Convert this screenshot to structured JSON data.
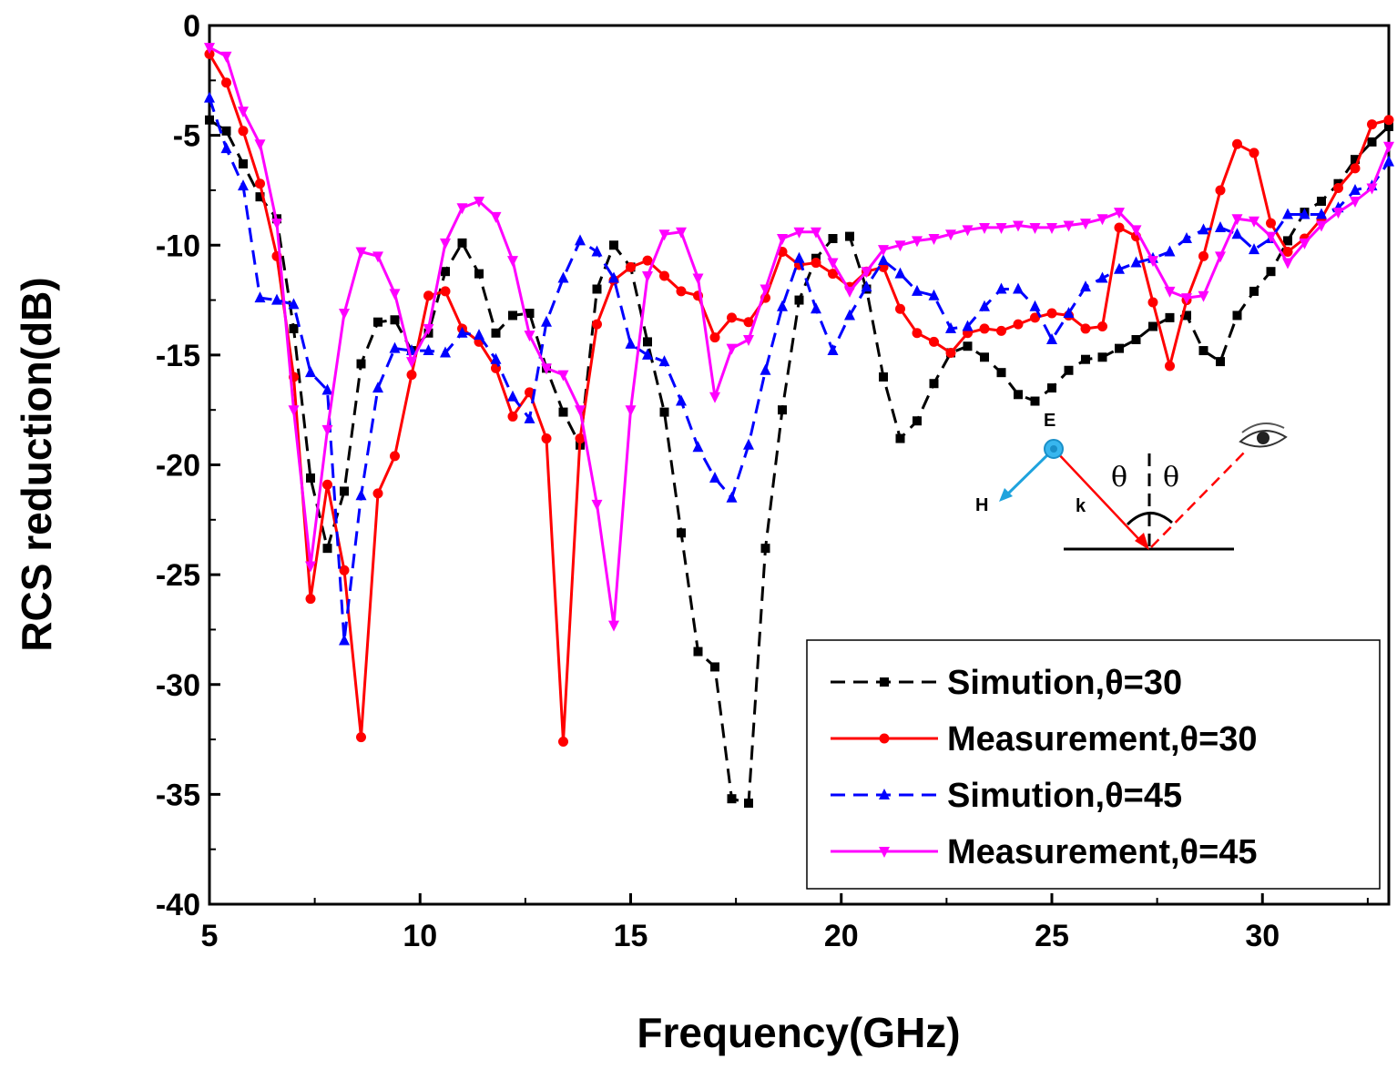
{
  "chart_data": {
    "type": "line",
    "title": "",
    "xlabel": "Frequency(GHz)",
    "ylabel": "RCS reduction(dB)",
    "xlim": [
      5,
      33
    ],
    "ylim": [
      -40,
      0
    ],
    "xticks": [
      5,
      10,
      15,
      20,
      25,
      30
    ],
    "yticks": [
      0,
      -5,
      -10,
      -15,
      -20,
      -25,
      -30,
      -35,
      -40
    ],
    "grid": false,
    "legend_position": "bottom-right",
    "series": [
      {
        "name": "Simution,θ=30",
        "color": "#000000",
        "dash": "dashed",
        "marker": "square",
        "x": [
          5,
          5.4,
          5.8,
          6.2,
          6.6,
          7,
          7.4,
          7.8,
          8.2,
          8.6,
          9,
          9.4,
          9.8,
          10.2,
          10.6,
          11,
          11.4,
          11.8,
          12.2,
          12.6,
          13,
          13.4,
          13.8,
          14.2,
          14.6,
          15,
          15.4,
          15.8,
          16.2,
          16.6,
          17,
          17.4,
          17.8,
          18.2,
          18.6,
          19,
          19.4,
          19.8,
          20.2,
          20.6,
          21,
          21.4,
          21.8,
          22.2,
          22.6,
          23,
          23.4,
          23.8,
          24.2,
          24.6,
          25,
          25.4,
          25.8,
          26.2,
          26.6,
          27,
          27.4,
          27.8,
          28.2,
          28.6,
          29,
          29.4,
          29.8,
          30.2,
          30.6,
          31,
          31.4,
          31.8,
          32.2,
          32.6,
          33
        ],
        "values": [
          -4.3,
          -4.8,
          -6.3,
          -7.8,
          -8.8,
          -13.8,
          -20.6,
          -23.8,
          -21.2,
          -15.4,
          -13.5,
          -13.4,
          -14.8,
          -14.0,
          -11.2,
          -9.9,
          -11.3,
          -14.0,
          -13.2,
          -13.1,
          -15.6,
          -17.6,
          -19.1,
          -12.0,
          -10.0,
          -11.0,
          -14.4,
          -17.6,
          -23.1,
          -28.5,
          -29.2,
          -35.2,
          -35.4,
          -23.8,
          -17.5,
          -12.5,
          -10.6,
          -9.7,
          -9.6,
          -12.0,
          -16.0,
          -18.8,
          -18.0,
          -16.3,
          -14.9,
          -14.6,
          -15.1,
          -15.8,
          -16.8,
          -17.1,
          -16.5,
          -15.7,
          -15.2,
          -15.1,
          -14.7,
          -14.3,
          -13.7,
          -13.3,
          -13.2,
          -14.8,
          -15.3,
          -13.2,
          -12.1,
          -11.2,
          -9.8,
          -8.5,
          -8.0,
          -7.2,
          -6.1,
          -5.3,
          -4.6
        ]
      },
      {
        "name": "Measurement,θ=30",
        "color": "#ff0000",
        "dash": "solid",
        "marker": "circle",
        "x": [
          5,
          5.4,
          5.8,
          6.2,
          6.6,
          7,
          7.4,
          7.8,
          8.2,
          8.6,
          9,
          9.4,
          9.8,
          10.2,
          10.6,
          11,
          11.4,
          11.8,
          12.2,
          12.6,
          13,
          13.4,
          13.8,
          14.2,
          14.6,
          15,
          15.4,
          15.8,
          16.2,
          16.6,
          17,
          17.4,
          17.8,
          18.2,
          18.6,
          19,
          19.4,
          19.8,
          20.2,
          20.6,
          21,
          21.4,
          21.8,
          22.2,
          22.6,
          23,
          23.4,
          23.8,
          24.2,
          24.6,
          25,
          25.4,
          25.8,
          26.2,
          26.6,
          27,
          27.4,
          27.8,
          28.2,
          28.6,
          29,
          29.4,
          29.8,
          30.2,
          30.6,
          31,
          31.4,
          31.8,
          32.2,
          32.6,
          33
        ],
        "values": [
          -1.3,
          -2.6,
          -4.8,
          -7.2,
          -10.5,
          -16.0,
          -26.1,
          -20.9,
          -24.8,
          -32.4,
          -21.3,
          -19.6,
          -15.9,
          -12.3,
          -12.1,
          -13.8,
          -14.4,
          -15.6,
          -17.8,
          -16.7,
          -18.8,
          -32.6,
          -18.8,
          -13.6,
          -11.6,
          -11.0,
          -10.7,
          -11.4,
          -12.1,
          -12.3,
          -14.2,
          -13.3,
          -13.5,
          -12.4,
          -10.3,
          -10.9,
          -10.8,
          -11.3,
          -11.9,
          -11.2,
          -11.0,
          -12.9,
          -14.0,
          -14.4,
          -14.9,
          -14.0,
          -13.8,
          -13.9,
          -13.6,
          -13.3,
          -13.1,
          -13.2,
          -13.8,
          -13.7,
          -9.2,
          -9.6,
          -12.6,
          -15.5,
          -12.5,
          -10.5,
          -7.5,
          -5.4,
          -5.8,
          -9.0,
          -10.3,
          -9.7,
          -8.8,
          -7.4,
          -6.5,
          -4.5,
          -4.3
        ]
      },
      {
        "name": "Simution,θ=45",
        "color": "#0000ff",
        "dash": "dashed",
        "marker": "triangle-up",
        "x": [
          5,
          5.4,
          5.8,
          6.2,
          6.6,
          7,
          7.4,
          7.8,
          8.2,
          8.6,
          9,
          9.4,
          9.8,
          10.2,
          10.6,
          11,
          11.4,
          11.8,
          12.2,
          12.6,
          13,
          13.4,
          13.8,
          14.2,
          14.6,
          15,
          15.4,
          15.8,
          16.2,
          16.6,
          17,
          17.4,
          17.8,
          18.2,
          18.6,
          19,
          19.4,
          19.8,
          20.2,
          20.6,
          21,
          21.4,
          21.8,
          22.2,
          22.6,
          23,
          23.4,
          23.8,
          24.2,
          24.6,
          25,
          25.4,
          25.8,
          26.2,
          26.6,
          27,
          27.4,
          27.8,
          28.2,
          28.6,
          29,
          29.4,
          29.8,
          30.2,
          30.6,
          31,
          31.4,
          31.8,
          32.2,
          32.6,
          33
        ],
        "values": [
          -3.3,
          -5.6,
          -7.3,
          -12.4,
          -12.5,
          -12.7,
          -15.8,
          -16.6,
          -28.0,
          -21.4,
          -16.5,
          -14.7,
          -14.8,
          -14.8,
          -14.9,
          -14.0,
          -14.1,
          -15.2,
          -16.9,
          -17.9,
          -13.5,
          -11.5,
          -9.8,
          -10.3,
          -11.5,
          -14.5,
          -15.0,
          -15.3,
          -17.1,
          -19.2,
          -20.6,
          -21.5,
          -19.1,
          -15.7,
          -12.8,
          -10.6,
          -12.9,
          -14.8,
          -13.2,
          -11.9,
          -10.7,
          -11.3,
          -12.1,
          -12.3,
          -13.8,
          -13.7,
          -12.8,
          -12.0,
          -12.0,
          -12.8,
          -14.3,
          -13.1,
          -11.9,
          -11.5,
          -11.1,
          -10.8,
          -10.6,
          -10.3,
          -9.7,
          -9.3,
          -9.2,
          -9.5,
          -10.2,
          -9.7,
          -8.6,
          -8.6,
          -8.6,
          -8.3,
          -7.5,
          -7.3,
          -6.2
        ]
      },
      {
        "name": "Measurement,θ=45",
        "color": "#ff00ff",
        "dash": "solid",
        "marker": "triangle-down",
        "x": [
          5,
          5.4,
          5.8,
          6.2,
          6.6,
          7,
          7.4,
          7.8,
          8.2,
          8.6,
          9,
          9.4,
          9.8,
          10.2,
          10.6,
          11,
          11.4,
          11.8,
          12.2,
          12.6,
          13,
          13.4,
          13.8,
          14.2,
          14.6,
          15,
          15.4,
          15.8,
          16.2,
          16.6,
          17,
          17.4,
          17.8,
          18.2,
          18.6,
          19,
          19.4,
          19.8,
          20.2,
          20.6,
          21,
          21.4,
          21.8,
          22.2,
          22.6,
          23,
          23.4,
          23.8,
          24.2,
          24.6,
          25,
          25.4,
          25.8,
          26.2,
          26.6,
          27,
          27.4,
          27.8,
          28.2,
          28.6,
          29,
          29.4,
          29.8,
          30.2,
          30.6,
          31,
          31.4,
          31.8,
          32.2,
          32.6,
          33
        ],
        "values": [
          -1.0,
          -1.4,
          -3.9,
          -5.4,
          -9.0,
          -17.5,
          -24.6,
          -18.4,
          -13.1,
          -10.3,
          -10.5,
          -12.2,
          -15.3,
          -13.8,
          -9.9,
          -8.3,
          -8.0,
          -8.7,
          -10.7,
          -14.1,
          -15.6,
          -15.9,
          -17.5,
          -21.8,
          -27.3,
          -17.5,
          -11.4,
          -9.5,
          -9.4,
          -11.5,
          -16.9,
          -14.7,
          -14.3,
          -12.0,
          -9.7,
          -9.4,
          -9.4,
          -10.8,
          -12.1,
          -11.2,
          -10.2,
          -10.0,
          -9.8,
          -9.7,
          -9.5,
          -9.3,
          -9.2,
          -9.2,
          -9.1,
          -9.2,
          -9.2,
          -9.1,
          -9.0,
          -8.8,
          -8.5,
          -9.3,
          -10.7,
          -12.1,
          -12.4,
          -12.3,
          -10.5,
          -8.8,
          -8.9,
          -9.6,
          -10.8,
          -9.9,
          -9.1,
          -8.5,
          -8.0,
          -7.4,
          -5.5
        ]
      }
    ],
    "inset": {
      "e_label": "E",
      "h_label": "H",
      "k_label": "k",
      "theta_left": "θ",
      "theta_right": "θ",
      "e_color": "#1fa3dd",
      "incident_color": "#ff0000"
    }
  }
}
